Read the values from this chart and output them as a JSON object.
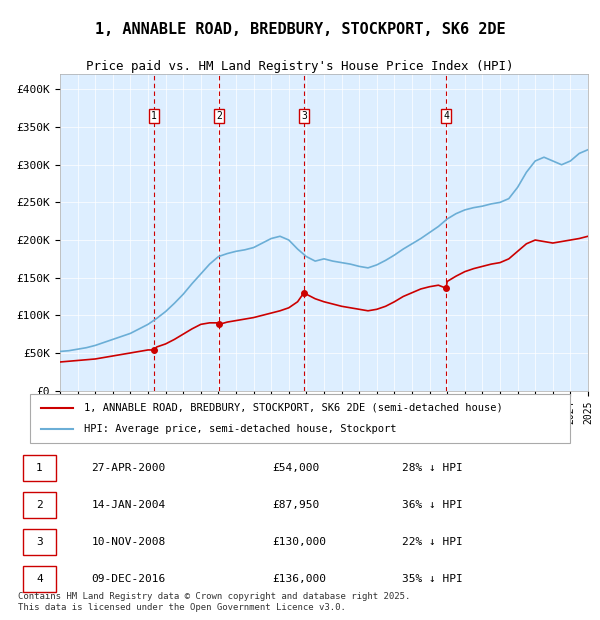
{
  "title": "1, ANNABLE ROAD, BREDBURY, STOCKPORT, SK6 2DE",
  "subtitle": "Price paid vs. HM Land Registry's House Price Index (HPI)",
  "footer": "Contains HM Land Registry data © Crown copyright and database right 2025.\nThis data is licensed under the Open Government Licence v3.0.",
  "legend_line1": "1, ANNABLE ROAD, BREDBURY, STOCKPORT, SK6 2DE (semi-detached house)",
  "legend_line2": "HPI: Average price, semi-detached house, Stockport",
  "transactions": [
    {
      "num": 1,
      "date": "27-APR-2000",
      "price": 54000,
      "pct": "28% ↓ HPI",
      "year": 2000.32
    },
    {
      "num": 2,
      "date": "14-JAN-2004",
      "price": 87950,
      "pct": "36% ↓ HPI",
      "year": 2004.04
    },
    {
      "num": 3,
      "date": "10-NOV-2008",
      "price": 130000,
      "pct": "22% ↓ HPI",
      "year": 2008.86
    },
    {
      "num": 4,
      "date": "09-DEC-2016",
      "price": 136000,
      "pct": "35% ↓ HPI",
      "year": 2016.94
    }
  ],
  "hpi_color": "#6baed6",
  "price_color": "#cc0000",
  "vline_color": "#cc0000",
  "background_color": "#ddeeff",
  "ylim": [
    0,
    420000
  ],
  "yticks": [
    0,
    50000,
    100000,
    150000,
    200000,
    250000,
    300000,
    350000,
    400000
  ],
  "ytick_labels": [
    "£0",
    "£50K",
    "£100K",
    "£150K",
    "£200K",
    "£250K",
    "£300K",
    "£350K",
    "£400K"
  ],
  "year_start": 1995,
  "year_end": 2025,
  "hpi_data_x": [
    1995,
    1995.5,
    1996,
    1996.5,
    1997,
    1997.5,
    1998,
    1998.5,
    1999,
    1999.5,
    2000,
    2000.5,
    2001,
    2001.5,
    2002,
    2002.5,
    2003,
    2003.5,
    2004,
    2004.5,
    2005,
    2005.5,
    2006,
    2006.5,
    2007,
    2007.5,
    2008,
    2008.5,
    2009,
    2009.5,
    2010,
    2010.5,
    2011,
    2011.5,
    2012,
    2012.5,
    2013,
    2013.5,
    2014,
    2014.5,
    2015,
    2015.5,
    2016,
    2016.5,
    2017,
    2017.5,
    2018,
    2018.5,
    2019,
    2019.5,
    2020,
    2020.5,
    2021,
    2021.5,
    2022,
    2022.5,
    2023,
    2023.5,
    2024,
    2024.5,
    2025
  ],
  "hpi_data_y": [
    52000,
    53000,
    55000,
    57000,
    60000,
    64000,
    68000,
    72000,
    76000,
    82000,
    88000,
    96000,
    105000,
    116000,
    128000,
    142000,
    155000,
    168000,
    178000,
    182000,
    185000,
    187000,
    190000,
    196000,
    202000,
    205000,
    200000,
    188000,
    178000,
    172000,
    175000,
    172000,
    170000,
    168000,
    165000,
    163000,
    167000,
    173000,
    180000,
    188000,
    195000,
    202000,
    210000,
    218000,
    228000,
    235000,
    240000,
    243000,
    245000,
    248000,
    250000,
    255000,
    270000,
    290000,
    305000,
    310000,
    305000,
    300000,
    305000,
    315000,
    320000
  ],
  "price_data_x": [
    1995,
    1995.5,
    1996,
    1996.5,
    1997,
    1997.5,
    1998,
    1998.5,
    1999,
    1999.5,
    2000,
    2000.32,
    2000.5,
    2001,
    2001.5,
    2002,
    2002.5,
    2003,
    2003.5,
    2004,
    2004.04,
    2004.5,
    2005,
    2005.5,
    2006,
    2006.5,
    2007,
    2007.5,
    2008,
    2008.5,
    2008.86,
    2009,
    2009.5,
    2010,
    2010.5,
    2011,
    2011.5,
    2012,
    2012.5,
    2013,
    2013.5,
    2014,
    2014.5,
    2015,
    2015.5,
    2016,
    2016.5,
    2016.94,
    2017,
    2017.5,
    2018,
    2018.5,
    2019,
    2019.5,
    2020,
    2020.5,
    2021,
    2021.5,
    2022,
    2022.5,
    2023,
    2023.5,
    2024,
    2024.5,
    2025
  ],
  "price_data_y": [
    38000,
    39000,
    40000,
    41000,
    42000,
    44000,
    46000,
    48000,
    50000,
    52000,
    54000,
    54000,
    58000,
    62000,
    68000,
    75000,
    82000,
    88000,
    90000,
    90000,
    87950,
    91000,
    93000,
    95000,
    97000,
    100000,
    103000,
    106000,
    110000,
    118000,
    130000,
    128000,
    122000,
    118000,
    115000,
    112000,
    110000,
    108000,
    106000,
    108000,
    112000,
    118000,
    125000,
    130000,
    135000,
    138000,
    140000,
    136000,
    145000,
    152000,
    158000,
    162000,
    165000,
    168000,
    170000,
    175000,
    185000,
    195000,
    200000,
    198000,
    196000,
    198000,
    200000,
    202000,
    205000
  ]
}
